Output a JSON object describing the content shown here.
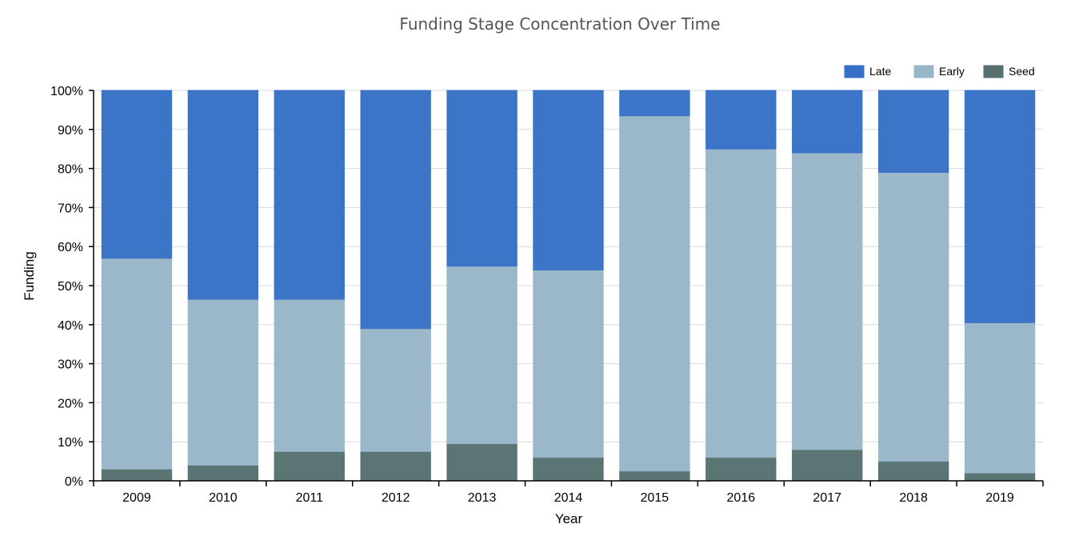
{
  "chart_data": {
    "type": "bar",
    "stacked": true,
    "normalized": true,
    "title": "Funding Stage Concentration Over Time",
    "xlabel": "Year",
    "ylabel": "Funding",
    "categories": [
      "2009",
      "2010",
      "2011",
      "2012",
      "2013",
      "2014",
      "2015",
      "2016",
      "2017",
      "2018",
      "2019"
    ],
    "series": [
      {
        "name": "Seed",
        "color": "#566f6f",
        "values": [
          3,
          4,
          7.5,
          7.5,
          9.5,
          6,
          2.5,
          6,
          8,
          5,
          2
        ]
      },
      {
        "name": "Early",
        "color": "#97b6c8",
        "values": [
          54,
          42.5,
          39,
          31.5,
          45.5,
          48,
          91,
          79,
          76,
          74,
          38.5
        ]
      },
      {
        "name": "Late",
        "color": "#3670c6",
        "values": [
          43,
          53.5,
          53.5,
          61,
          45,
          46,
          6.5,
          15,
          16,
          21,
          59.5
        ]
      }
    ],
    "legend_order": [
      "Late",
      "Early",
      "Seed"
    ],
    "legend_position": "top-right",
    "yticks": [
      "0%",
      "10%",
      "20%",
      "30%",
      "40%",
      "50%",
      "60%",
      "70%",
      "80%",
      "90%",
      "100%"
    ],
    "ylim": [
      0,
      100
    ],
    "grid": true
  }
}
